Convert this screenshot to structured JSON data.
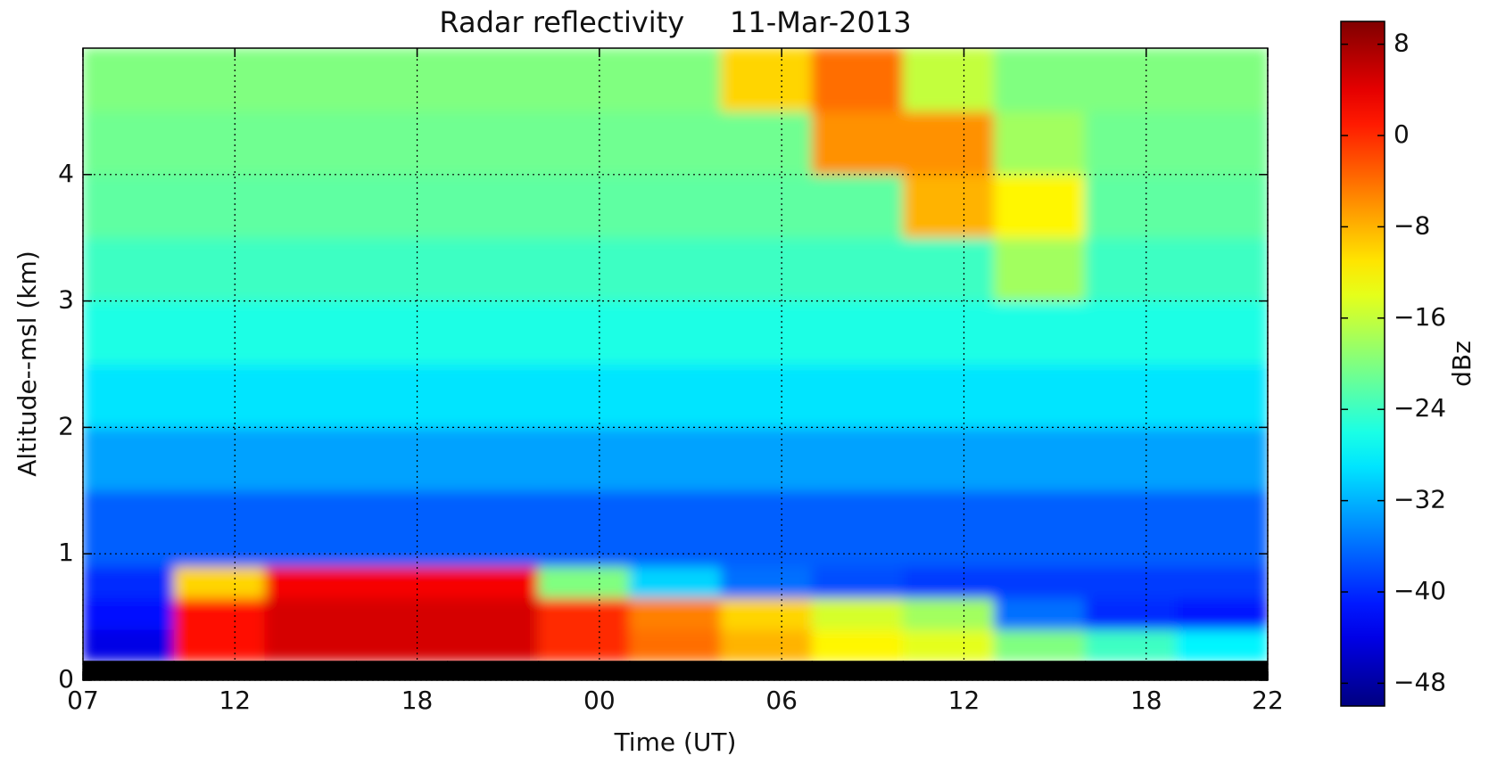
{
  "chart_data": {
    "type": "heatmap",
    "title": "Radar reflectivity     11-Mar-2013",
    "x_label": "Time (UT)",
    "y_label": "Altitude--msl (km)",
    "colorbar_label": "dBz",
    "colormap": "jet",
    "missing_color": "#000000",
    "grid": true,
    "xlim": [
      7,
      46
    ],
    "xticks": [
      {
        "value": 7,
        "label": "07"
      },
      {
        "value": 12,
        "label": "12"
      },
      {
        "value": 18,
        "label": "18"
      },
      {
        "value": 24,
        "label": "00"
      },
      {
        "value": 30,
        "label": "06"
      },
      {
        "value": 36,
        "label": "12"
      },
      {
        "value": 42,
        "label": "18"
      },
      {
        "value": 46,
        "label": "22"
      }
    ],
    "ylim": [
      0,
      5
    ],
    "yticks": [
      0,
      1,
      2,
      3,
      4
    ],
    "clim": [
      -50,
      10
    ],
    "cticks": [
      8,
      0,
      {
        "value": -8,
        "label": "−8"
      },
      {
        "value": -16,
        "label": "−16"
      },
      {
        "value": -24,
        "label": "−24"
      },
      {
        "value": -32,
        "label": "−32"
      },
      {
        "value": -40,
        "label": "−40"
      },
      {
        "value": -48,
        "label": "−48"
      }
    ],
    "x_bins": [
      7,
      10,
      13,
      16,
      19,
      22,
      25,
      28,
      31,
      34,
      37,
      40,
      43,
      46
    ],
    "y_bins": [
      0,
      0.15,
      0.4,
      0.65,
      0.9,
      1.5,
      2,
      2.5,
      3,
      3.5,
      4,
      4.5,
      5
    ],
    "values": [
      [
        null,
        null,
        null,
        null,
        null,
        null,
        null,
        null,
        null,
        null,
        null,
        null,
        null
      ],
      [
        -44,
        2,
        5,
        5,
        5,
        0,
        -4,
        -8,
        -12,
        -14,
        -20,
        -24,
        -28
      ],
      [
        -42,
        2,
        5,
        5,
        5,
        0,
        -5,
        -10,
        -15,
        -18,
        -36,
        -40,
        -41
      ],
      [
        -40,
        -10,
        3,
        3,
        3,
        -20,
        -30,
        -36,
        -38,
        -39,
        -39,
        -39,
        -39
      ],
      [
        -37,
        -37,
        -37,
        -37,
        -37,
        -37,
        -37,
        -37,
        -37,
        -37,
        -37,
        -37,
        -37
      ],
      [
        -33,
        -33,
        -33,
        -33,
        -33,
        -33,
        -33,
        -33,
        -33,
        -33,
        -33,
        -33,
        -33
      ],
      [
        -29,
        -29,
        -29,
        -29,
        -29,
        -29,
        -29,
        -29,
        -29,
        -29,
        -29,
        -29,
        -29
      ],
      [
        -26,
        -26,
        -26,
        -26,
        -26,
        -26,
        -26,
        -26,
        -26,
        -26,
        -26,
        -26,
        -26
      ],
      [
        -24,
        -24,
        -24,
        -24,
        -24,
        -24,
        -24,
        -24,
        -24,
        -24,
        -18,
        -24,
        -24
      ],
      [
        -22,
        -22,
        -22,
        -22,
        -22,
        -22,
        -22,
        -22,
        -22,
        -8,
        -12,
        -22,
        -22
      ],
      [
        -21,
        -21,
        -21,
        -21,
        -21,
        -21,
        -21,
        -21,
        -6,
        -6,
        -18,
        -21,
        -21
      ],
      [
        -20,
        -20,
        -20,
        -20,
        -20,
        -20,
        -20,
        -10,
        -4,
        -16,
        -20,
        -20,
        -20
      ]
    ]
  }
}
